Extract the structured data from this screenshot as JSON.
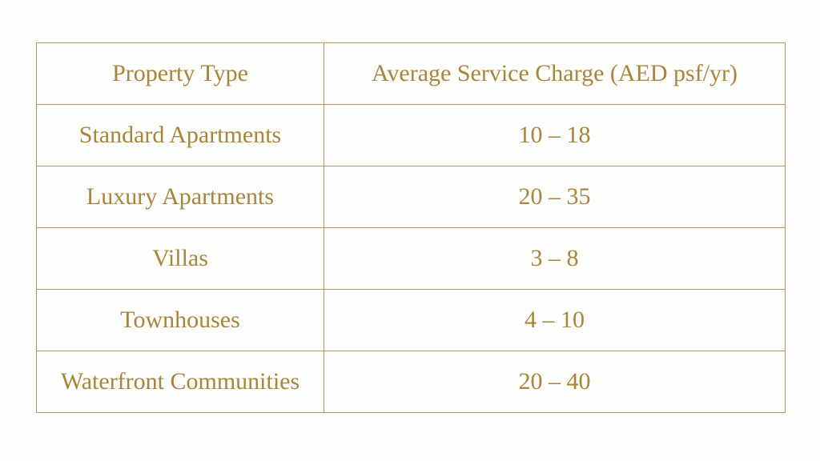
{
  "table": {
    "header": [
      "Property Type",
      "Average Service Charge (AED psf/yr)"
    ],
    "rows": [
      [
        "Standard Apartments",
        "10 – 18"
      ],
      [
        "Luxury Apartments",
        "20 – 35"
      ],
      [
        "Villas",
        "3 – 8"
      ],
      [
        "Townhouses",
        "4 – 10"
      ],
      [
        "Waterfront Communities",
        "20 – 40"
      ]
    ]
  }
}
